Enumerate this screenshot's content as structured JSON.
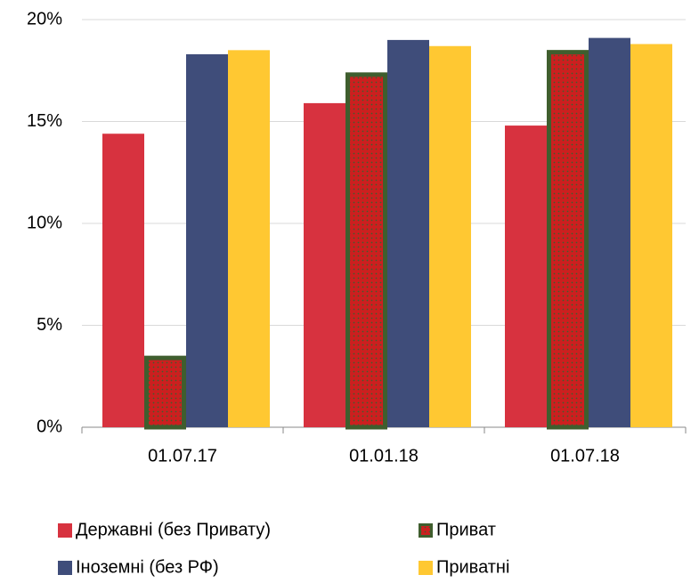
{
  "chart_data": {
    "type": "bar",
    "categories": [
      "01.07.17",
      "01.01.18",
      "01.07.18"
    ],
    "series": [
      {
        "name": "Державні (без Привату)",
        "color": "#d7323f",
        "values": [
          14.4,
          15.9,
          14.8
        ]
      },
      {
        "name": "Приват",
        "color": "#cc1f1f",
        "values": [
          3.4,
          17.3,
          18.4
        ]
      },
      {
        "name": "Іноземні (без РФ)",
        "color": "#3f4d7a",
        "values": [
          18.3,
          19.0,
          19.1
        ]
      },
      {
        "name": "Приватні",
        "color": "#ffc832",
        "values": [
          18.5,
          18.7,
          18.8
        ]
      }
    ],
    "ylim": [
      0,
      20
    ],
    "yticks": [
      {
        "value": 0,
        "label": "0%"
      },
      {
        "value": 5,
        "label": "5%"
      },
      {
        "value": 10,
        "label": "10%"
      },
      {
        "value": 15,
        "label": "15%"
      },
      {
        "value": 20,
        "label": "20%"
      }
    ],
    "grid": true
  }
}
